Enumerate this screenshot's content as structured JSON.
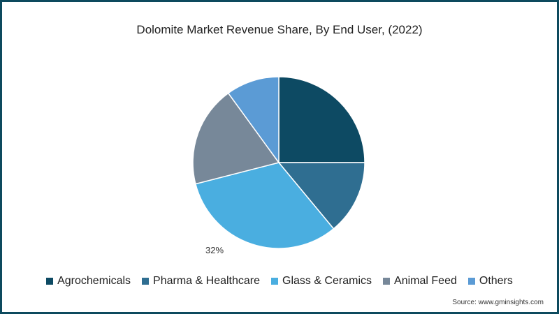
{
  "chart_data": {
    "type": "pie",
    "title": "Dolomite Market Revenue Share, By End User, (2022)",
    "categories": [
      "Agrochemicals",
      "Pharma & Healthcare",
      "Glass & Ceramics",
      "Animal Feed",
      "Others"
    ],
    "values": [
      25,
      14,
      32,
      19,
      10
    ],
    "unit": "%",
    "colors": [
      "#0d4a63",
      "#2f6e91",
      "#4aaee0",
      "#778899",
      "#5b9bd5"
    ],
    "start_angle_deg": 0,
    "direction": "clockwise",
    "annotations": [
      {
        "category": "Glass & Ceramics",
        "text": "32%"
      }
    ],
    "legend_position": "bottom"
  },
  "title": "Dolomite Market Revenue Share, By End User, (2022)",
  "slice_label": "32%",
  "legend": [
    {
      "label": "Agrochemicals",
      "color": "#0d4a63"
    },
    {
      "label": "Pharma & Healthcare",
      "color": "#2f6e91"
    },
    {
      "label": "Glass & Ceramics",
      "color": "#4aaee0"
    },
    {
      "label": "Animal Feed",
      "color": "#778899"
    },
    {
      "label": "Others",
      "color": "#5b9bd5"
    }
  ],
  "source": "Source: www.gminsights.com",
  "frame_color": "#0d4a5e"
}
